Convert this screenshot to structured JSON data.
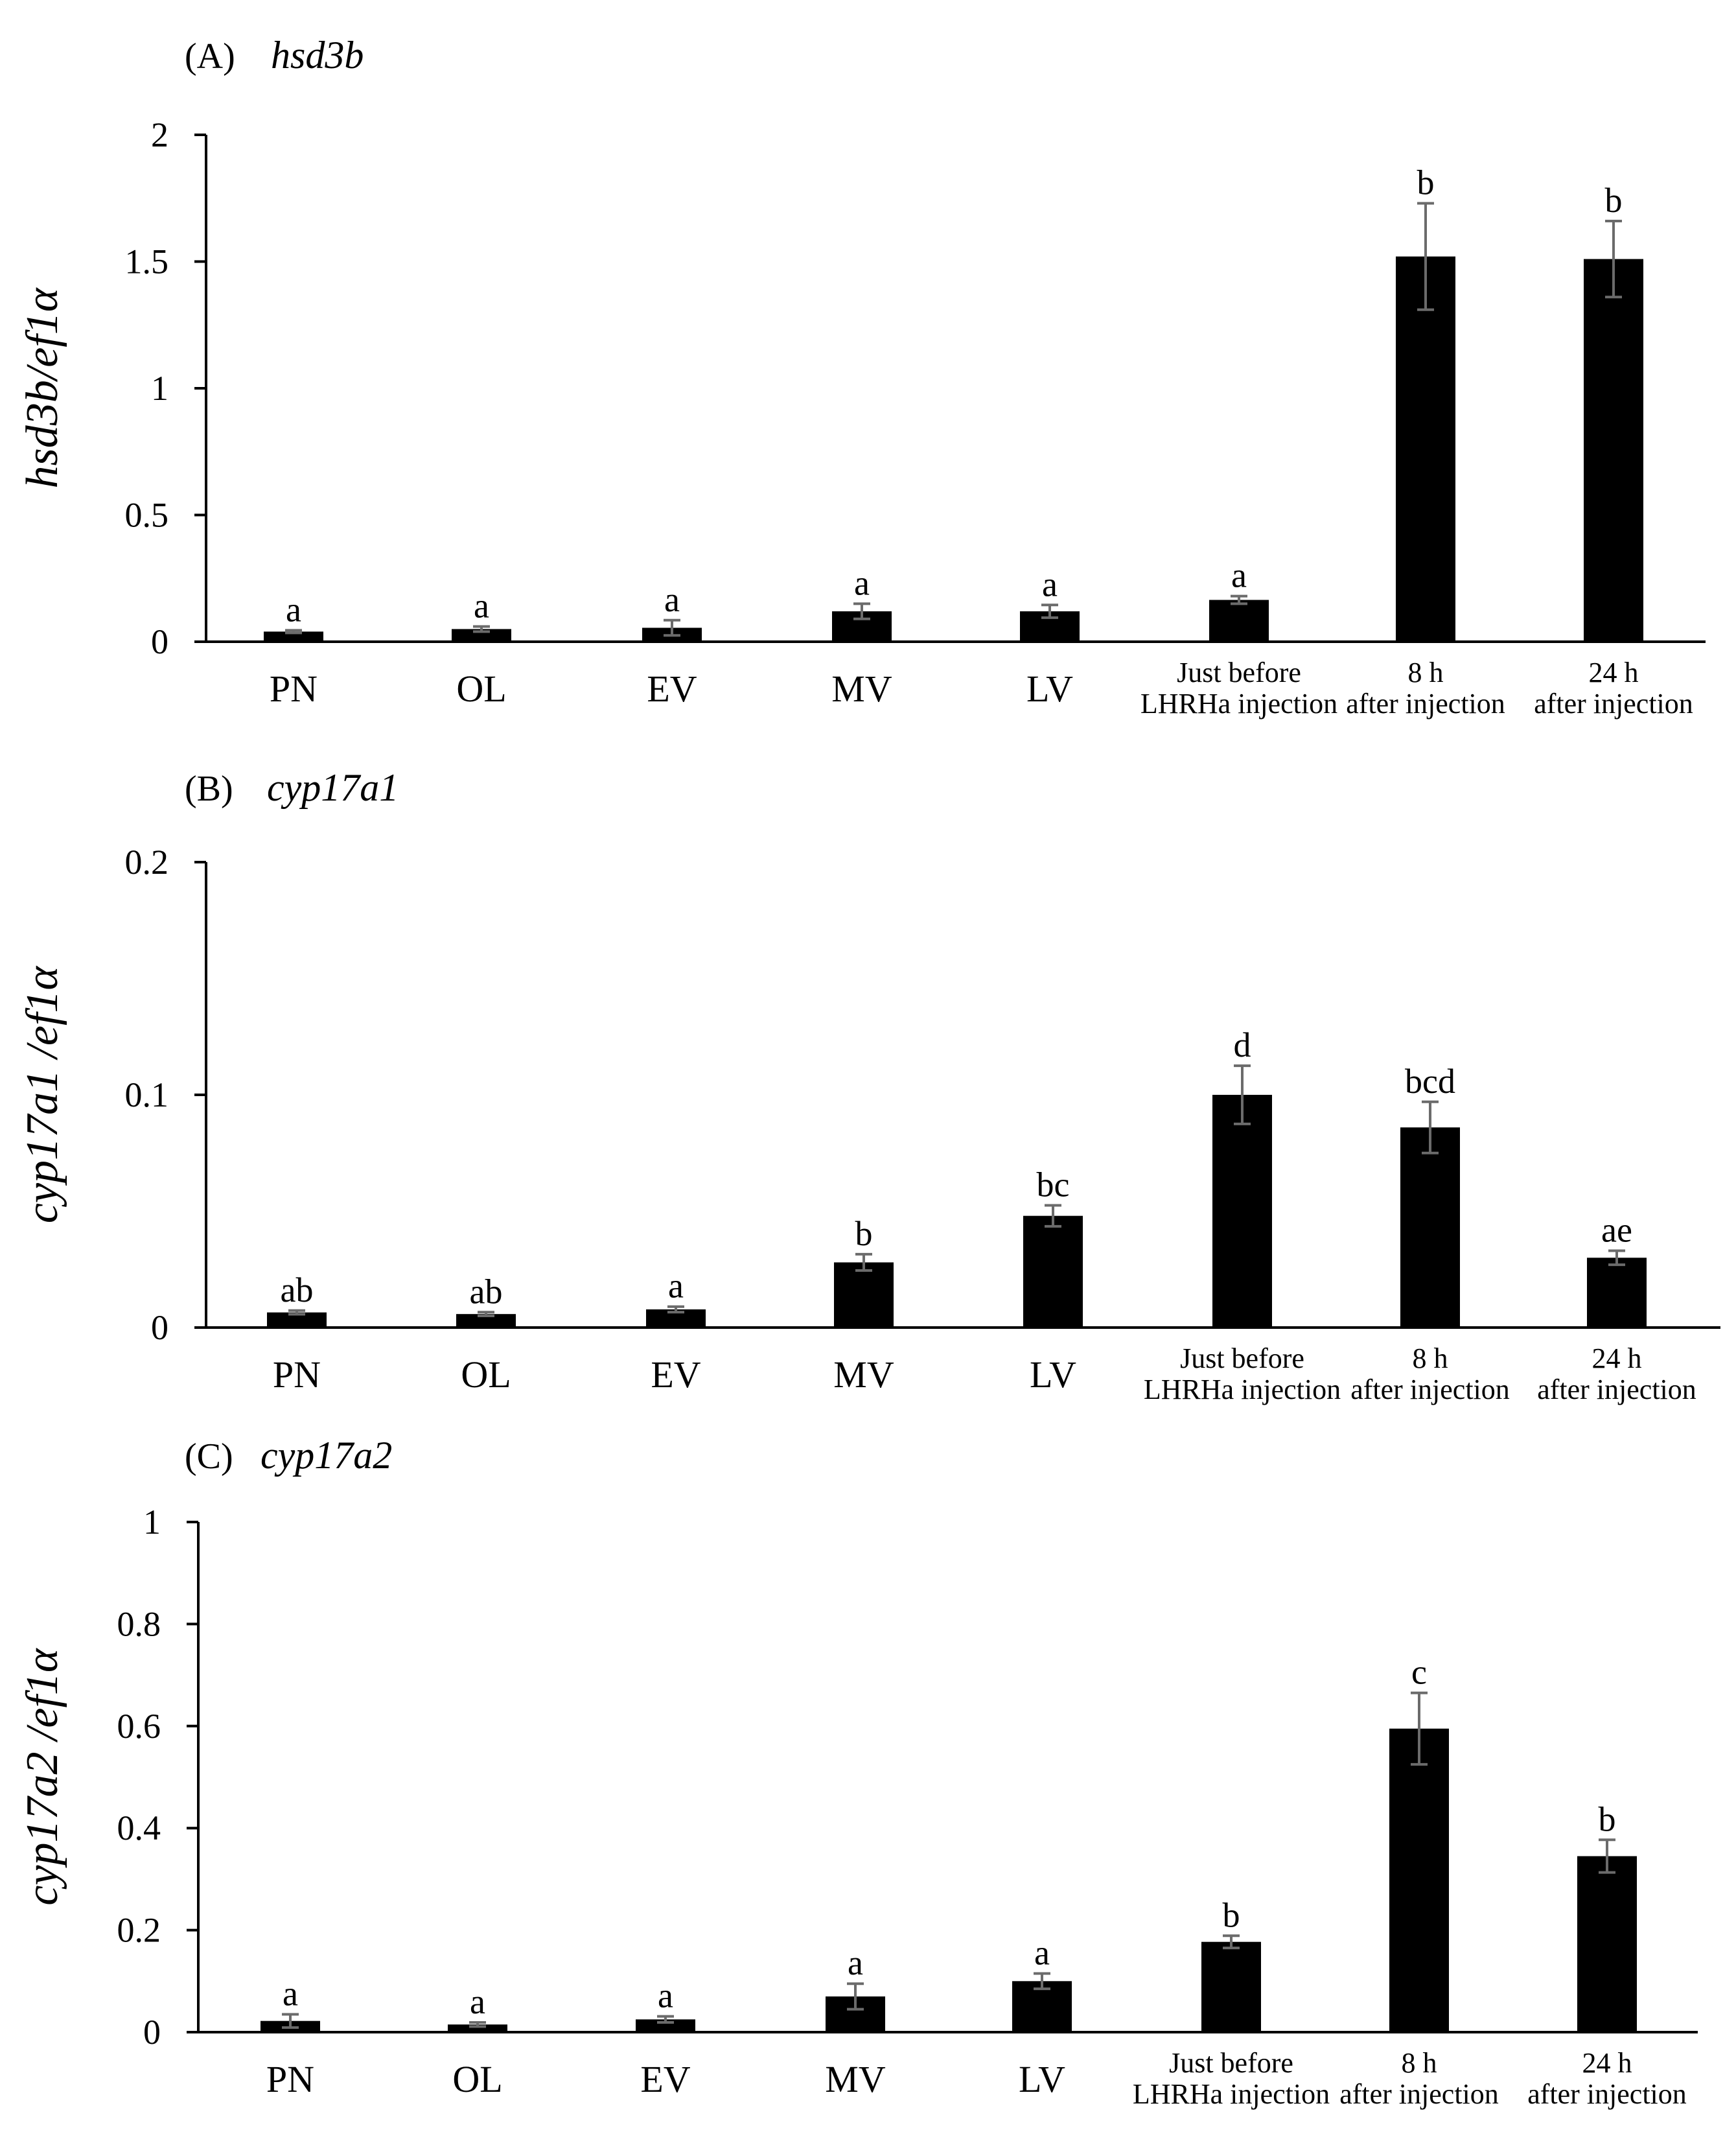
{
  "chart_data": [
    {
      "type": "bar",
      "panel_letter": "(A)",
      "gene": "hsd3b",
      "ylabel": "hsd3b/ef1α",
      "xlabel": "",
      "ylim": [
        0,
        2
      ],
      "yticks": [
        "0",
        "0.5",
        "1",
        "1.5",
        "2"
      ],
      "categories": [
        "PN",
        "OL",
        "EV",
        "MV",
        "LV",
        "Just before\nLHRHa injection",
        "8 h\nafter injection",
        "24 h\nafter injection"
      ],
      "series": [
        {
          "name": "hsd3b/ef1α",
          "values": [
            0.04,
            0.05,
            0.055,
            0.12,
            0.12,
            0.165,
            1.52,
            1.51
          ],
          "errors": [
            0.005,
            0.01,
            0.03,
            0.03,
            0.025,
            0.015,
            0.21,
            0.15
          ],
          "letters": [
            "a",
            "a",
            "a",
            "a",
            "a",
            "a",
            "b",
            "b"
          ]
        }
      ]
    },
    {
      "type": "bar",
      "panel_letter": "(B)",
      "gene": "cyp17a1",
      "ylabel": "cyp17a1 /ef1α",
      "xlabel": "",
      "ylim": [
        0,
        0.2
      ],
      "yticks": [
        "0",
        "0.1",
        "0.2"
      ],
      "categories": [
        "PN",
        "OL",
        "EV",
        "MV",
        "LV",
        "Just before\nLHRHa injection",
        "8 h\nafter injection",
        "24 h\nafter injection"
      ],
      "series": [
        {
          "name": "cyp17a1/ef1α",
          "values": [
            0.0065,
            0.0058,
            0.0078,
            0.028,
            0.048,
            0.1,
            0.086,
            0.03
          ],
          "errors": [
            0.0008,
            0.0008,
            0.0012,
            0.0035,
            0.0045,
            0.0125,
            0.011,
            0.003
          ],
          "letters": [
            "ab",
            "ab",
            "a",
            "b",
            "bc",
            "d",
            "bcd",
            "ae"
          ]
        }
      ]
    },
    {
      "type": "bar",
      "panel_letter": "(C)",
      "gene": "cyp17a2",
      "ylabel": "cyp17a2 /ef1α",
      "xlabel": "",
      "ylim": [
        0,
        1
      ],
      "yticks": [
        "0",
        "0.2",
        "0.4",
        "0.6",
        "0.8",
        "1"
      ],
      "categories": [
        "PN",
        "OL",
        "EV",
        "MV",
        "LV",
        "Just before\nLHRHa injection",
        "8 h\nafter injection",
        "24 h\nafter injection"
      ],
      "series": [
        {
          "name": "cyp17a2/ef1α",
          "values": [
            0.022,
            0.015,
            0.025,
            0.07,
            0.1,
            0.177,
            0.595,
            0.345
          ],
          "errors": [
            0.013,
            0.004,
            0.006,
            0.025,
            0.015,
            0.012,
            0.07,
            0.032
          ],
          "letters": [
            "a",
            "a",
            "a",
            "a",
            "a",
            "b",
            "c",
            "b"
          ]
        }
      ]
    }
  ]
}
